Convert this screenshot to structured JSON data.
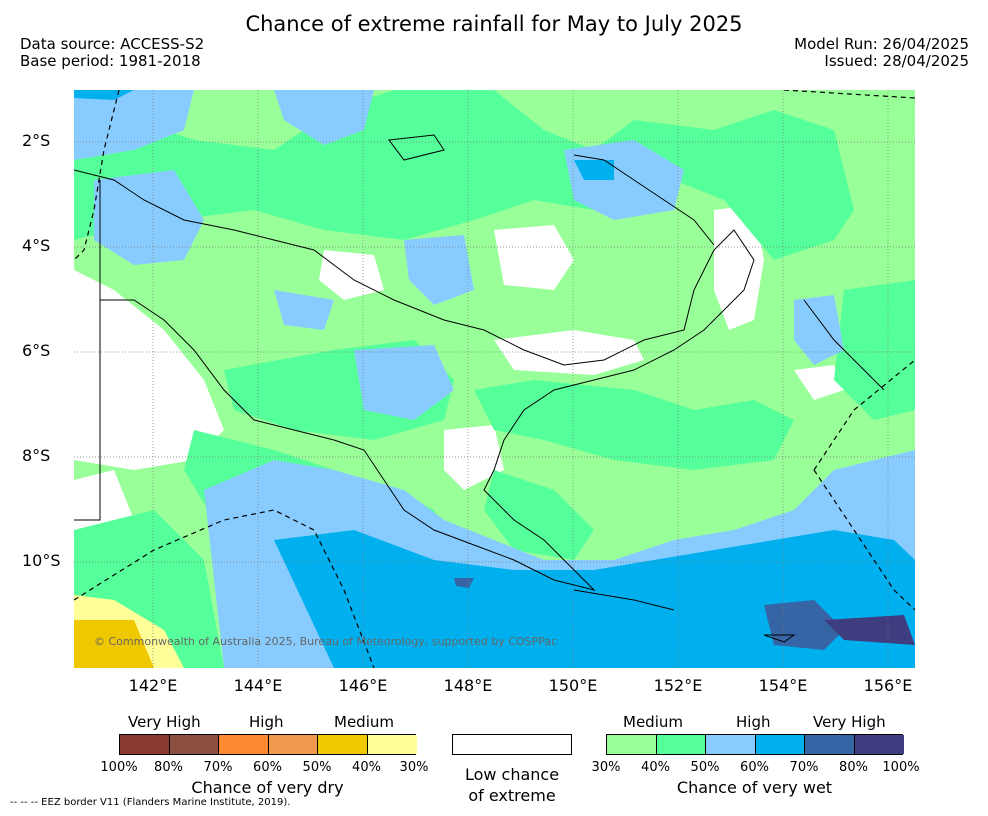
{
  "title": "Chance of extreme rainfall for May to July 2025",
  "header": {
    "data_source": "Data source: ACCESS-S2",
    "base_period": "Base period: 1981-2018",
    "model_run": "Model Run: 26/04/2025",
    "issued": "Issued: 28/04/2025"
  },
  "map": {
    "lat_labels": [
      "2°S",
      "4°S",
      "6°S",
      "8°S",
      "10°S"
    ],
    "lon_labels": [
      "142°E",
      "144°E",
      "146°E",
      "148°E",
      "150°E",
      "152°E",
      "154°E",
      "156°E"
    ],
    "copyright": "© Commonwealth of Australia 2025, Bureau of Meteorology, supported by COSPPac",
    "fill_colors": {
      "low": "#ffffff",
      "wet_30_40": "#99ff99",
      "wet_40_50": "#55ff99",
      "wet_50_60": "#88ccff",
      "wet_60_70": "#00b0ee",
      "wet_70_80": "#3565a5",
      "wet_80_100": "#3d3d80",
      "dry_30_40": "#ffff99",
      "dry_40_50": "#f0c800"
    }
  },
  "legend": {
    "dry": {
      "headers": [
        "Very High",
        "High",
        "Medium"
      ],
      "colors": [
        "#8b3a30",
        "#8b5040",
        "#ff8833",
        "#f09a50",
        "#f0c800",
        "#ffff99"
      ],
      "pct_labels": [
        "100%",
        "80%",
        "70%",
        "60%",
        "50%",
        "40%",
        "30%"
      ],
      "caption": "Chance of very dry"
    },
    "low": {
      "caption_line1": "Low chance",
      "caption_line2": "of extreme"
    },
    "wet": {
      "headers": [
        "Medium",
        "High",
        "Very High"
      ],
      "colors": [
        "#99ff99",
        "#55ff99",
        "#88ccff",
        "#00b0ee",
        "#3565a5",
        "#3d3d80"
      ],
      "pct_labels": [
        "30%",
        "40%",
        "50%",
        "60%",
        "70%",
        "80%",
        "100%"
      ],
      "caption": "Chance of very wet"
    }
  },
  "footnote": "--  --  -- EEZ border V11 (Flanders Marine Institute, 2019)."
}
